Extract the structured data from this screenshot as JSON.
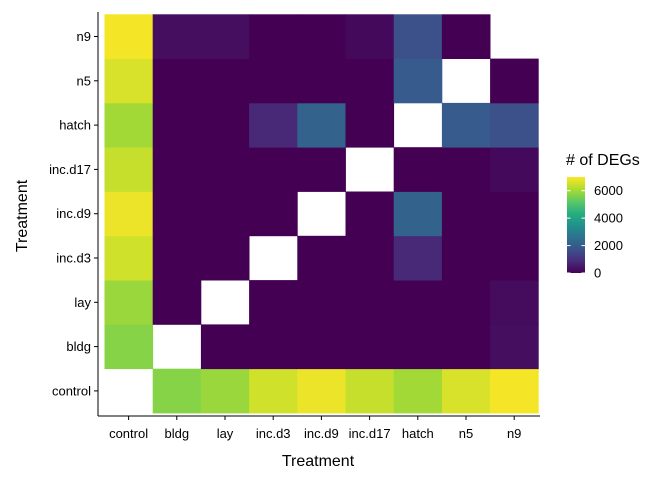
{
  "chart_data": {
    "type": "heatmap",
    "xlabel": "Treatment",
    "ylabel": "Treatment",
    "x_categories": [
      "control",
      "bldg",
      "lay",
      "inc.d3",
      "inc.d9",
      "inc.d17",
      "hatch",
      "n5",
      "n9"
    ],
    "y_categories": [
      "control",
      "bldg",
      "lay",
      "inc.d3",
      "inc.d9",
      "inc.d17",
      "hatch",
      "n5",
      "n9"
    ],
    "cells": [
      {
        "x": "bldg",
        "y": "control",
        "value": 5700
      },
      {
        "x": "lay",
        "y": "control",
        "value": 5900
      },
      {
        "x": "inc.d3",
        "y": "control",
        "value": 6500
      },
      {
        "x": "inc.d9",
        "y": "control",
        "value": 6800
      },
      {
        "x": "inc.d17",
        "y": "control",
        "value": 6400
      },
      {
        "x": "hatch",
        "y": "control",
        "value": 6000
      },
      {
        "x": "n5",
        "y": "control",
        "value": 6600
      },
      {
        "x": "n9",
        "y": "control",
        "value": 6900
      },
      {
        "x": "control",
        "y": "bldg",
        "value": 5700
      },
      {
        "x": "lay",
        "y": "bldg",
        "value": 0
      },
      {
        "x": "inc.d3",
        "y": "bldg",
        "value": 0
      },
      {
        "x": "inc.d9",
        "y": "bldg",
        "value": 0
      },
      {
        "x": "inc.d17",
        "y": "bldg",
        "value": 0
      },
      {
        "x": "hatch",
        "y": "bldg",
        "value": 0
      },
      {
        "x": "n5",
        "y": "bldg",
        "value": 0
      },
      {
        "x": "n9",
        "y": "bldg",
        "value": 250
      },
      {
        "x": "control",
        "y": "lay",
        "value": 5900
      },
      {
        "x": "bldg",
        "y": "lay",
        "value": 0
      },
      {
        "x": "inc.d3",
        "y": "lay",
        "value": 0
      },
      {
        "x": "inc.d9",
        "y": "lay",
        "value": 0
      },
      {
        "x": "inc.d17",
        "y": "lay",
        "value": 0
      },
      {
        "x": "hatch",
        "y": "lay",
        "value": 0
      },
      {
        "x": "n5",
        "y": "lay",
        "value": 0
      },
      {
        "x": "n9",
        "y": "lay",
        "value": 200
      },
      {
        "x": "control",
        "y": "inc.d3",
        "value": 6500
      },
      {
        "x": "bldg",
        "y": "inc.d3",
        "value": 0
      },
      {
        "x": "lay",
        "y": "inc.d3",
        "value": 0
      },
      {
        "x": "inc.d9",
        "y": "inc.d3",
        "value": 0
      },
      {
        "x": "inc.d17",
        "y": "inc.d3",
        "value": 0
      },
      {
        "x": "hatch",
        "y": "inc.d3",
        "value": 800
      },
      {
        "x": "n5",
        "y": "inc.d3",
        "value": 0
      },
      {
        "x": "n9",
        "y": "inc.d3",
        "value": 0
      },
      {
        "x": "control",
        "y": "inc.d9",
        "value": 6800
      },
      {
        "x": "bldg",
        "y": "inc.d9",
        "value": 0
      },
      {
        "x": "lay",
        "y": "inc.d9",
        "value": 0
      },
      {
        "x": "inc.d3",
        "y": "inc.d9",
        "value": 0
      },
      {
        "x": "inc.d17",
        "y": "inc.d9",
        "value": 0
      },
      {
        "x": "hatch",
        "y": "inc.d9",
        "value": 2200
      },
      {
        "x": "n5",
        "y": "inc.d9",
        "value": 0
      },
      {
        "x": "n9",
        "y": "inc.d9",
        "value": 0
      },
      {
        "x": "control",
        "y": "inc.d17",
        "value": 6400
      },
      {
        "x": "bldg",
        "y": "inc.d17",
        "value": 0
      },
      {
        "x": "lay",
        "y": "inc.d17",
        "value": 0
      },
      {
        "x": "inc.d3",
        "y": "inc.d17",
        "value": 0
      },
      {
        "x": "inc.d9",
        "y": "inc.d17",
        "value": 0
      },
      {
        "x": "hatch",
        "y": "inc.d17",
        "value": 0
      },
      {
        "x": "n5",
        "y": "inc.d17",
        "value": 0
      },
      {
        "x": "n9",
        "y": "inc.d17",
        "value": 150
      },
      {
        "x": "control",
        "y": "hatch",
        "value": 6000
      },
      {
        "x": "bldg",
        "y": "hatch",
        "value": 0
      },
      {
        "x": "lay",
        "y": "hatch",
        "value": 0
      },
      {
        "x": "inc.d3",
        "y": "hatch",
        "value": 800
      },
      {
        "x": "inc.d9",
        "y": "hatch",
        "value": 2200
      },
      {
        "x": "inc.d17",
        "y": "hatch",
        "value": 0
      },
      {
        "x": "n5",
        "y": "hatch",
        "value": 2000
      },
      {
        "x": "n9",
        "y": "hatch",
        "value": 1700
      },
      {
        "x": "control",
        "y": "n5",
        "value": 6600
      },
      {
        "x": "bldg",
        "y": "n5",
        "value": 0
      },
      {
        "x": "lay",
        "y": "n5",
        "value": 0
      },
      {
        "x": "inc.d3",
        "y": "n5",
        "value": 0
      },
      {
        "x": "inc.d9",
        "y": "n5",
        "value": 0
      },
      {
        "x": "inc.d17",
        "y": "n5",
        "value": 0
      },
      {
        "x": "hatch",
        "y": "n5",
        "value": 2000
      },
      {
        "x": "n9",
        "y": "n5",
        "value": 0
      },
      {
        "x": "control",
        "y": "n9",
        "value": 6900
      },
      {
        "x": "bldg",
        "y": "n9",
        "value": 250
      },
      {
        "x": "lay",
        "y": "n9",
        "value": 250
      },
      {
        "x": "inc.d3",
        "y": "n9",
        "value": 0
      },
      {
        "x": "inc.d9",
        "y": "n9",
        "value": 0
      },
      {
        "x": "inc.d17",
        "y": "n9",
        "value": 150
      },
      {
        "x": "hatch",
        "y": "n9",
        "value": 1700
      },
      {
        "x": "n5",
        "y": "n9",
        "value": 0
      }
    ],
    "value_range": [
      0,
      7000
    ],
    "colorscale": "viridis",
    "legend": {
      "title": "# of DEGs",
      "ticks": [
        0,
        2000,
        4000,
        6000
      ],
      "tick_labels": [
        "0",
        "2000",
        "4000",
        "6000"
      ],
      "placement": "right"
    },
    "grid": false
  }
}
